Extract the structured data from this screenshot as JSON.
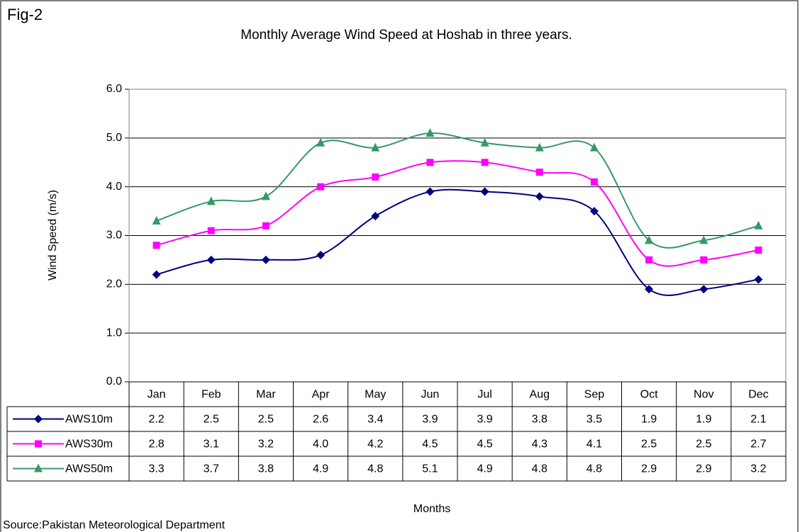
{
  "chart_data": {
    "type": "line",
    "fig_label": "Fig-2",
    "title": "Monthly Average Wind Speed at Hoshab in three years.",
    "y_label": "Wind Speed (m/s)",
    "x_label": "Months",
    "source": "Source:Pakistan Meteorological Department",
    "categories": [
      "Jan",
      "Feb",
      "Mar",
      "Apr",
      "May",
      "Jun",
      "Jul",
      "Aug",
      "Sep",
      "Oct",
      "Nov",
      "Dec"
    ],
    "series": [
      {
        "name": "AWS10m",
        "color": "#000080",
        "marker": "diamond",
        "values": [
          2.2,
          2.5,
          2.5,
          2.6,
          3.4,
          3.9,
          3.9,
          3.8,
          3.5,
          1.9,
          1.9,
          2.1
        ],
        "value_labels": [
          "2.2",
          "2.5",
          "2.5",
          "2.6",
          "3.4",
          "3.9",
          "3.9",
          "3.8",
          "3.5",
          "1.9",
          "1.9",
          "2.1"
        ]
      },
      {
        "name": "AWS30m",
        "color": "#FF00FF",
        "marker": "square",
        "values": [
          2.8,
          3.1,
          3.2,
          4.0,
          4.2,
          4.5,
          4.5,
          4.3,
          4.1,
          2.5,
          2.5,
          2.7
        ],
        "value_labels": [
          "2.8",
          "3.1",
          "3.2",
          "4.0",
          "4.2",
          "4.5",
          "4.5",
          "4.3",
          "4.1",
          "2.5",
          "2.5",
          "2.7"
        ]
      },
      {
        "name": "AWS50m",
        "color": "#339966",
        "marker": "triangle",
        "values": [
          3.3,
          3.7,
          3.8,
          4.9,
          4.8,
          5.1,
          4.9,
          4.8,
          4.8,
          2.9,
          2.9,
          3.2
        ],
        "value_labels": [
          "3.3",
          "3.7",
          "3.8",
          "4.9",
          "4.8",
          "5.1",
          "4.9",
          "4.8",
          "4.8",
          "2.9",
          "2.9",
          "3.2"
        ]
      }
    ],
    "ylim": [
      0,
      6
    ],
    "yticks": [
      {
        "value": 0,
        "label": "0.0"
      },
      {
        "value": 1,
        "label": "1.0"
      },
      {
        "value": 2,
        "label": "2.0"
      },
      {
        "value": 3,
        "label": "3.0"
      },
      {
        "value": 4,
        "label": "4.0"
      },
      {
        "value": 5,
        "label": "5.0"
      },
      {
        "value": 6,
        "label": "6.0"
      }
    ],
    "grid": true
  }
}
